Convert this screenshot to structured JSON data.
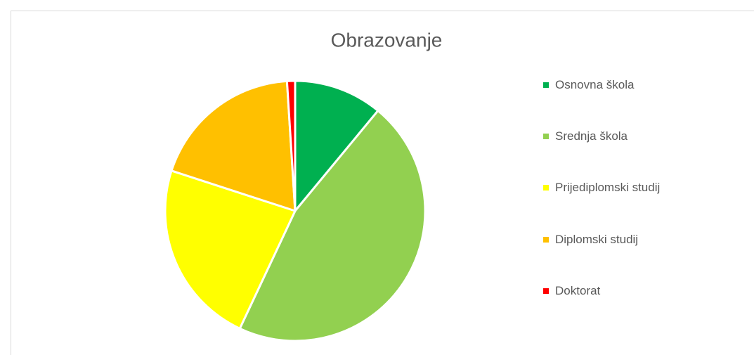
{
  "chart_data": {
    "type": "pie",
    "title": "Obrazovanje",
    "categories": [
      "Osnovna škola",
      "Srednja škola",
      "Prijediplomski studij",
      "Diplomski studij",
      "Doktorat"
    ],
    "values": [
      11,
      46,
      23,
      19,
      1
    ],
    "colors": [
      "#00b050",
      "#92d050",
      "#ffff00",
      "#ffc000",
      "#ff0000"
    ],
    "legend": "right"
  }
}
